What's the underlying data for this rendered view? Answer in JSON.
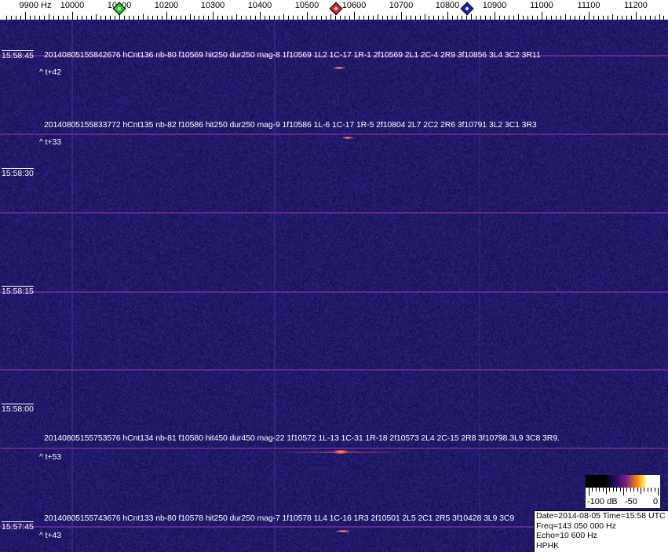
{
  "frequency_scale": {
    "unit_label": "9900 Hz",
    "labels": [
      "10000",
      "10100",
      "10200",
      "10300",
      "10400",
      "10500",
      "10600",
      "10700",
      "10800",
      "10900",
      "11000",
      "11100",
      "11200"
    ],
    "markers": [
      {
        "name": "green-marker",
        "freq_hz": 10100,
        "color": "#22cc22"
      },
      {
        "name": "red-marker",
        "freq_hz": 10562,
        "color": "#dd2222"
      },
      {
        "name": "blue-marker",
        "freq_hz": 10841,
        "color": "#1122cc"
      }
    ]
  },
  "time_labels": [
    "15:58:45",
    "15:58:30",
    "15:58:15",
    "15:58:00",
    "15:57:45"
  ],
  "detections": [
    {
      "text": "20140805155842676 hCnt136 nb-80 f10569 hit250 dur250 mag-8 1f10569 1L2 1C-17 1R-1 2f10569 2L1 2C-4 2R9 3f10856 3L4 3C2 3R11",
      "offset": "^ t+42"
    },
    {
      "text": "20140805155833772 hCnt135 nb-82 f10586 hit250 dur250 mag-9 1f10586 1L-6 1C-17 1R-5 2f10804 2L7 2C2 2R6 3f10791 3L2 3C1 3R3",
      "offset": "^ t+33"
    },
    {
      "text": "20140805155753576 hCnt134 nb-81 f10580 hit450 dur450 mag-22 1f10572 1L-13 1C-31 1R-18 2f10573 2L4 2C-15 2R8 3f10798.3L9 3C8 3R9.",
      "offset": "^ t+53"
    },
    {
      "text": "20140805155743676 hCnt133 nb-80 f10578 hit250 dur250 mag-7 1f10578 1L4 1C-16 1R3 2f10501 2L5 2C1 2R5 3f10428 3L9 3C9",
      "offset": "^ t+43"
    }
  ],
  "colorbar": {
    "labels": [
      "-100 dB",
      "-50",
      "0"
    ]
  },
  "info": {
    "date_time": "Date=2014-08-05 Time=15:58 UTC",
    "freq": "Freq=143 050 000 Hz",
    "echo": "Echo=10 600 Hz",
    "station": "HPHK"
  },
  "colors": {
    "background": "#1c1860",
    "grid_line": "#6a2a9a"
  }
}
